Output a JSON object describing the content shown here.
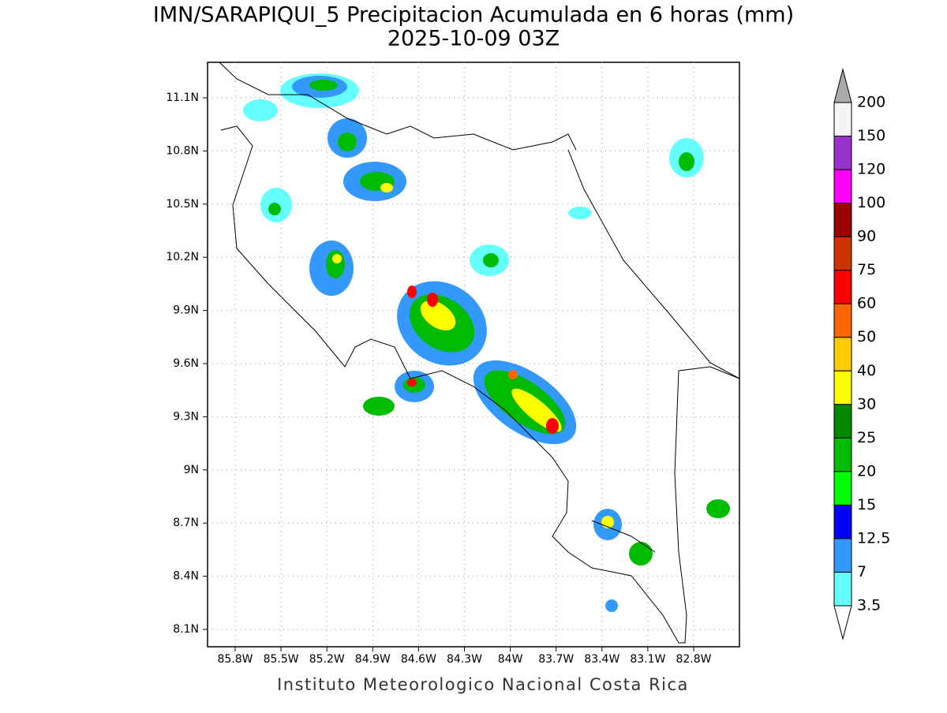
{
  "header": {
    "title": "IMN/SARAPIQUI_5 Precipitacion Acumulada en 6 horas (mm)",
    "subtitle": "2025-10-09 03Z"
  },
  "map": {
    "x_labels": [
      "85.8W",
      "85.5W",
      "85.2W",
      "84.9W",
      "84.6W",
      "84.3W",
      "84W",
      "83.7W",
      "83.4W",
      "83.1W",
      "82.8W"
    ],
    "y_labels": [
      "11.1N",
      "10.8N",
      "10.5N",
      "10.2N",
      "9.9N",
      "9.6N",
      "9.3N",
      "9N",
      "8.7N",
      "8.4N",
      "8.1N"
    ]
  },
  "legend": {
    "levels": [
      "200",
      "150",
      "120",
      "100",
      "90",
      "75",
      "60",
      "50",
      "40",
      "30",
      "25",
      "20",
      "15",
      "12.5",
      "7",
      "3.5"
    ],
    "colors": [
      "#f4f4f4",
      "#9933cc",
      "#ff00ff",
      "#990000",
      "#cc3300",
      "#ff0000",
      "#ff6600",
      "#ffcc00",
      "#ffff00",
      "#008800",
      "#00bb00",
      "#00ff00",
      "#0000ff",
      "#3399ff",
      "#66ffff"
    ],
    "over_color": "#aaaaaa",
    "under_color": "#ffffff"
  },
  "footer": "Instituto Meteorologico Nacional Costa Rica"
}
